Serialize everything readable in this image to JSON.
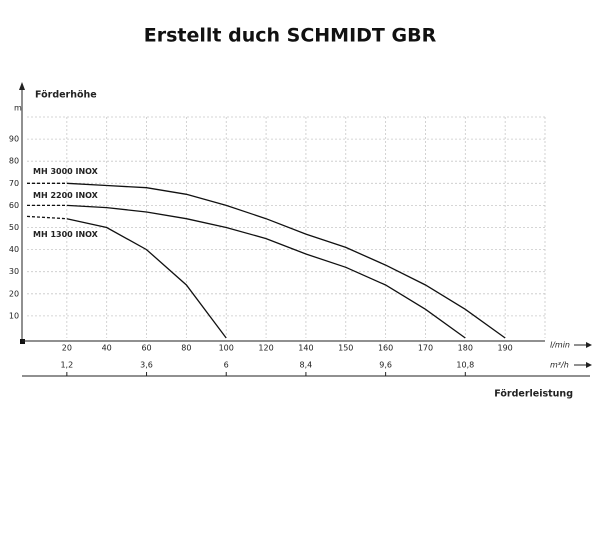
{
  "chart_data": {
    "type": "line",
    "title": "Erstellt duch SCHMIDT GBR",
    "y_label": "Förderhöhe",
    "y_unit": "m",
    "x_label": "Förderleistung",
    "x_unit": "l/min",
    "x2_unit": "m³/h",
    "x": [
      0,
      20,
      40,
      60,
      80,
      100,
      120,
      140,
      150,
      160,
      170,
      180,
      190
    ],
    "xlim": [
      0,
      200
    ],
    "xticks": [
      20,
      40,
      60,
      80,
      100,
      120,
      140,
      150,
      160,
      170,
      180,
      190
    ],
    "x2lim": [
      0,
      12
    ],
    "x2ticks": [
      {
        "value": 1.2,
        "label": "1,2"
      },
      {
        "value": 3.6,
        "label": "3,6"
      },
      {
        "value": 6,
        "label": "6"
      },
      {
        "value": 8.4,
        "label": "8,4"
      },
      {
        "value": 9.6,
        "label": "9,6"
      },
      {
        "value": 10.8,
        "label": "10,8"
      }
    ],
    "ylim": [
      0,
      100
    ],
    "yticks": [
      10,
      20,
      30,
      40,
      50,
      60,
      70,
      80,
      90
    ],
    "grid": true,
    "series": [
      {
        "name": "MH 3000 INOX",
        "color": "#111111",
        "label_color": "#3b4b9c",
        "values": [
          70,
          70,
          69,
          68,
          65,
          60,
          54,
          47,
          41,
          33,
          24,
          13,
          0
        ]
      },
      {
        "name": "MH 2200 INOX",
        "color": "#111111",
        "label_color": "#3b4b9c",
        "values": [
          60,
          60,
          59,
          57,
          54,
          50,
          45,
          38,
          32,
          24,
          13,
          0,
          null
        ]
      },
      {
        "name": "MH 1300 INOX",
        "color": "#111111",
        "label_color": "#3b4b9c",
        "values": [
          55,
          54,
          50,
          40,
          24,
          0,
          null,
          null,
          null,
          null,
          null,
          null,
          null
        ]
      }
    ]
  }
}
